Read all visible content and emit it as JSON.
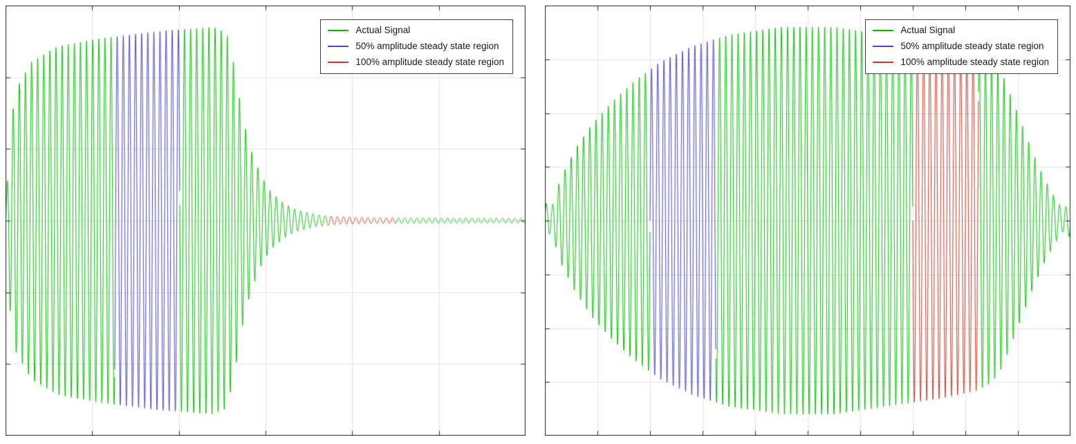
{
  "page": {
    "background": "#ffffff",
    "description": "Two side-by-side signal plots showing an actual oscillating signal with highlighted 50% and 100% amplitude steady state regions"
  },
  "colors": {
    "signal": "#00BE00",
    "region_50": "#4646BE",
    "region_100": "#BE3C28",
    "grid": "#E4E4E4",
    "axis": "#262626",
    "legend_border": "#404040",
    "legend_background": "#ffffff"
  },
  "chart_data": [
    {
      "type": "line",
      "title": "",
      "xlabel": "",
      "ylabel": "",
      "axis_tick_labels_visible": false,
      "grid": true,
      "grid_x_divisions": 6,
      "grid_y_divisions": 6,
      "x_range_normalized": [
        0,
        1
      ],
      "y_range_normalized": [
        -1,
        1
      ],
      "legend": [
        "Actual Signal",
        "50% amplitude steady state region",
        "100% amplitude steady state region"
      ],
      "legend_position": "top-right",
      "signal": {
        "name": "Actual Signal",
        "color": "#00BE00",
        "cycles": 85,
        "peak_fraction": 0.9,
        "envelope": [
          [
            0,
            0.03
          ],
          [
            0.008,
            0.45
          ],
          [
            0.02,
            0.68
          ],
          [
            0.05,
            0.82
          ],
          [
            0.1,
            0.9
          ],
          [
            0.18,
            0.94
          ],
          [
            0.3,
            0.98
          ],
          [
            0.4,
            1.0
          ],
          [
            0.425,
            0.97
          ],
          [
            0.44,
            0.8
          ],
          [
            0.455,
            0.55
          ],
          [
            0.47,
            0.38
          ],
          [
            0.49,
            0.24
          ],
          [
            0.51,
            0.15
          ],
          [
            0.535,
            0.09
          ],
          [
            0.56,
            0.055
          ],
          [
            0.6,
            0.03
          ],
          [
            0.64,
            0.02
          ],
          [
            0.7,
            0.015
          ],
          [
            1,
            0.012
          ]
        ]
      },
      "regions": [
        {
          "label": "50% amplitude steady state region",
          "color": "#4646BE",
          "x_start": 0.21,
          "x_end": 0.335
        },
        {
          "label": "100% amplitude steady state region",
          "color": "#BE3C28",
          "x_start": 0.62,
          "x_end": 0.75
        }
      ]
    },
    {
      "type": "line",
      "title": "",
      "xlabel": "",
      "ylabel": "",
      "axis_tick_labels_visible": false,
      "grid": true,
      "grid_x_divisions": 10,
      "grid_y_divisions": 8,
      "x_range_normalized": [
        0,
        1
      ],
      "y_range_normalized": [
        -1,
        1
      ],
      "legend": [
        "Actual Signal",
        "50% amplitude steady state region",
        "100% amplitude steady state region"
      ],
      "legend_position": "top-right",
      "signal": {
        "name": "Actual Signal",
        "color": "#00BE00",
        "cycles": 85,
        "peak_fraction": 0.9,
        "envelope": [
          [
            0,
            0.1
          ],
          [
            0.012,
            0.06
          ],
          [
            0.03,
            0.22
          ],
          [
            0.06,
            0.38
          ],
          [
            0.09,
            0.5
          ],
          [
            0.13,
            0.62
          ],
          [
            0.17,
            0.72
          ],
          [
            0.22,
            0.82
          ],
          [
            0.28,
            0.9
          ],
          [
            0.35,
            0.96
          ],
          [
            0.45,
            1.0
          ],
          [
            0.55,
            1.0
          ],
          [
            0.65,
            0.96
          ],
          [
            0.75,
            0.92
          ],
          [
            0.82,
            0.88
          ],
          [
            0.85,
            0.84
          ],
          [
            0.87,
            0.76
          ],
          [
            0.89,
            0.62
          ],
          [
            0.91,
            0.48
          ],
          [
            0.93,
            0.34
          ],
          [
            0.95,
            0.22
          ],
          [
            0.97,
            0.12
          ],
          [
            0.985,
            0.06
          ],
          [
            1,
            0.09
          ]
        ]
      },
      "regions": [
        {
          "label": "50% amplitude steady state region",
          "color": "#4646BE",
          "x_start": 0.2,
          "x_end": 0.325
        },
        {
          "label": "100% amplitude steady state region",
          "color": "#BE3C28",
          "x_start": 0.7,
          "x_end": 0.825
        }
      ]
    }
  ]
}
